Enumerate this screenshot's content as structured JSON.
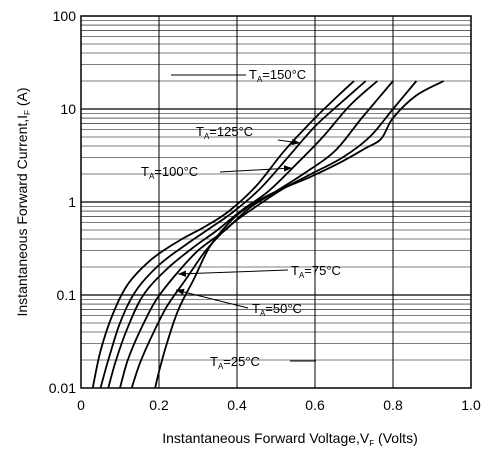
{
  "chart_data": {
    "type": "line",
    "title": "",
    "xlabel": {
      "main": "Instantaneous Forward Voltage,V",
      "sub": "F",
      "tail": " (Volts)"
    },
    "ylabel": {
      "main": "Instantaneous Forward Current,I",
      "sub": "F",
      "tail": " (A)"
    },
    "xlim": [
      0,
      1.0
    ],
    "ylim": [
      0.01,
      100
    ],
    "yscale": "log",
    "grid": true,
    "x_ticks": [
      "0",
      "0.2",
      "0.4",
      "0.6",
      "0.8",
      "1.0"
    ],
    "y_ticks": [
      "0.01",
      "0.1",
      "1",
      "10",
      "100"
    ],
    "series": [
      {
        "name": "T_A=150°C",
        "points": [
          [
            0.03,
            0.01
          ],
          [
            0.05,
            0.025
          ],
          [
            0.08,
            0.06
          ],
          [
            0.12,
            0.13
          ],
          [
            0.18,
            0.24
          ],
          [
            0.25,
            0.38
          ],
          [
            0.32,
            0.55
          ],
          [
            0.38,
            0.8
          ],
          [
            0.45,
            1.5
          ],
          [
            0.52,
            3.5
          ],
          [
            0.6,
            8
          ],
          [
            0.66,
            14
          ],
          [
            0.7,
            20
          ]
        ]
      },
      {
        "name": "T_A=125°C",
        "points": [
          [
            0.05,
            0.01
          ],
          [
            0.07,
            0.02
          ],
          [
            0.1,
            0.05
          ],
          [
            0.14,
            0.11
          ],
          [
            0.2,
            0.21
          ],
          [
            0.27,
            0.35
          ],
          [
            0.33,
            0.52
          ],
          [
            0.39,
            0.78
          ],
          [
            0.46,
            1.4
          ],
          [
            0.53,
            3
          ],
          [
            0.6,
            6.5
          ],
          [
            0.67,
            12
          ],
          [
            0.73,
            20
          ]
        ]
      },
      {
        "name": "T_A=100°C",
        "points": [
          [
            0.07,
            0.01
          ],
          [
            0.09,
            0.02
          ],
          [
            0.12,
            0.045
          ],
          [
            0.16,
            0.1
          ],
          [
            0.22,
            0.19
          ],
          [
            0.29,
            0.33
          ],
          [
            0.35,
            0.5
          ],
          [
            0.41,
            0.8
          ],
          [
            0.48,
            1.3
          ],
          [
            0.55,
            2.5
          ],
          [
            0.62,
            5
          ],
          [
            0.69,
            11
          ],
          [
            0.76,
            20
          ]
        ]
      },
      {
        "name": "T_A=75°C",
        "points": [
          [
            0.1,
            0.01
          ],
          [
            0.12,
            0.02
          ],
          [
            0.15,
            0.04
          ],
          [
            0.19,
            0.085
          ],
          [
            0.24,
            0.16
          ],
          [
            0.3,
            0.3
          ],
          [
            0.37,
            0.5
          ],
          [
            0.43,
            0.85
          ],
          [
            0.5,
            1.3
          ],
          [
            0.57,
            2
          ],
          [
            0.65,
            3.5
          ],
          [
            0.72,
            8
          ],
          [
            0.8,
            20
          ]
        ]
      },
      {
        "name": "T_A=50°C",
        "points": [
          [
            0.13,
            0.01
          ],
          [
            0.15,
            0.018
          ],
          [
            0.18,
            0.035
          ],
          [
            0.22,
            0.075
          ],
          [
            0.27,
            0.15
          ],
          [
            0.32,
            0.3
          ],
          [
            0.38,
            0.55
          ],
          [
            0.45,
            0.9
          ],
          [
            0.52,
            1.4
          ],
          [
            0.59,
            2
          ],
          [
            0.67,
            3
          ],
          [
            0.74,
            5
          ],
          [
            0.8,
            10
          ],
          [
            0.86,
            20
          ]
        ]
      },
      {
        "name": "T_A=25°C",
        "points": [
          [
            0.19,
            0.01
          ],
          [
            0.2,
            0.015
          ],
          [
            0.22,
            0.03
          ],
          [
            0.25,
            0.07
          ],
          [
            0.29,
            0.15
          ],
          [
            0.33,
            0.33
          ],
          [
            0.38,
            0.6
          ],
          [
            0.43,
            0.9
          ],
          [
            0.5,
            1.3
          ],
          [
            0.58,
            1.8
          ],
          [
            0.66,
            2.6
          ],
          [
            0.73,
            3.8
          ],
          [
            0.77,
            4.8
          ],
          [
            0.8,
            8
          ],
          [
            0.86,
            14
          ],
          [
            0.93,
            20
          ]
        ]
      }
    ],
    "annotations": [
      {
        "main": "T",
        "sub": "A",
        "tail": "=150°C"
      },
      {
        "main": "T",
        "sub": "A",
        "tail": "=125°C"
      },
      {
        "main": "T",
        "sub": "A",
        "tail": "=100°C"
      },
      {
        "main": "T",
        "sub": "A",
        "tail": "=75°C"
      },
      {
        "main": "T",
        "sub": "A",
        "tail": "=50°C"
      },
      {
        "main": "T",
        "sub": "A",
        "tail": "=25°C"
      }
    ]
  }
}
